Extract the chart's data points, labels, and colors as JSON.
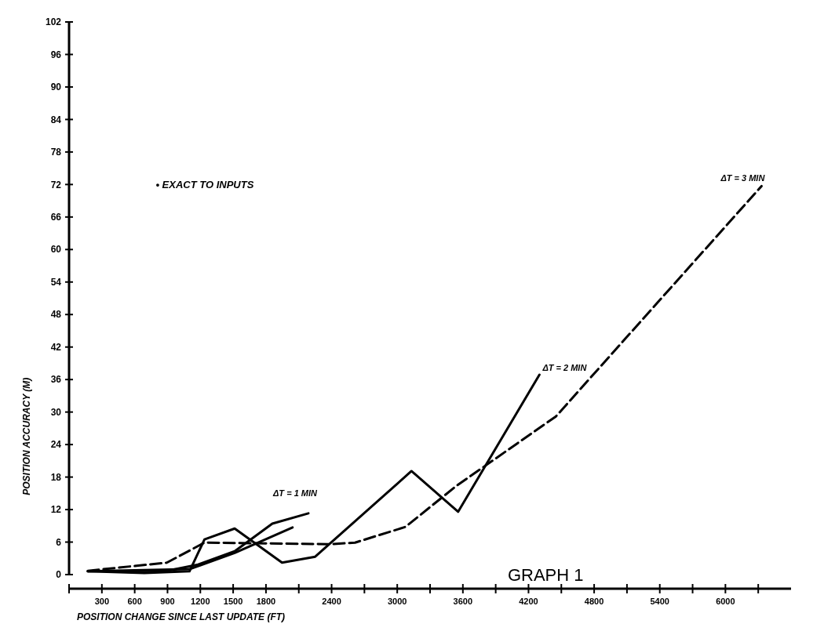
{
  "chart_data": {
    "type": "line",
    "title": "GRAPH 1",
    "xlabel": "POSITION CHANGE SINCE LAST UPDATE (FT)",
    "ylabel": "POSITION ACCURACY (M)",
    "xlim": [
      0,
      6600
    ],
    "ylim": [
      0,
      102
    ],
    "xticks": [
      {
        "value": 0,
        "label": null
      },
      300,
      600,
      900,
      1200,
      1500,
      1800,
      {
        "value": 2100,
        "label": null
      },
      2400,
      {
        "value": 2700,
        "label": null
      },
      3000,
      {
        "value": 3300,
        "label": null
      },
      3600,
      {
        "value": 3900,
        "label": null
      },
      4200,
      {
        "value": 4500,
        "label": null
      },
      4800,
      {
        "value": 5100,
        "label": null
      },
      5400,
      {
        "value": 5700,
        "label": null
      },
      6000,
      {
        "value": 6300,
        "label": null
      }
    ],
    "yticks": [
      0,
      6,
      12,
      18,
      24,
      30,
      36,
      42,
      48,
      54,
      60,
      66,
      72,
      78,
      84,
      90,
      96,
      102
    ],
    "grid": false,
    "marker": "none",
    "series": [
      {
        "color": "#000000",
        "line_style": "dashed",
        "x": [
          172,
          894,
          1238,
          2387,
          2614,
          3075,
          3543,
          4451,
          6330
        ],
        "values": [
          0.7,
          2.2,
          5.9,
          5.6,
          5.9,
          8.8,
          16.4,
          29.2,
          71.7
        ]
      },
      {
        "color": "#000000",
        "line_style": "solid",
        "x": [
          172,
          688,
          1101,
          1238,
          1514,
          1947,
          2250,
          3130,
          3557,
          4300
        ],
        "values": [
          0.6,
          0.3,
          0.6,
          6.5,
          8.5,
          2.2,
          3.3,
          19.1,
          11.6,
          36.9
        ]
      },
      {
        "color": "#000000",
        "line_style": "solid",
        "x": [
          172,
          894,
          1170,
          1514,
          1858,
          2188
        ],
        "values": [
          0.6,
          0.7,
          1.8,
          4.3,
          9.4,
          11.3
        ]
      },
      {
        "color": "#000000",
        "line_style": "solid",
        "x": [
          172,
          1101,
          1514,
          2043
        ],
        "values": [
          0.6,
          1.0,
          4.0,
          8.7
        ]
      }
    ],
    "annotations": [
      "• EXACT TO INPUTS",
      {
        "text": "ΔT = 1 MIN",
        "x": 2188,
        "y": 11.3
      },
      {
        "text": "ΔT = 2 MIN",
        "x": 4300,
        "y": 37
      },
      {
        "text": "ΔT = 3 MIN",
        "x": 6330,
        "y": 72
      }
    ]
  }
}
